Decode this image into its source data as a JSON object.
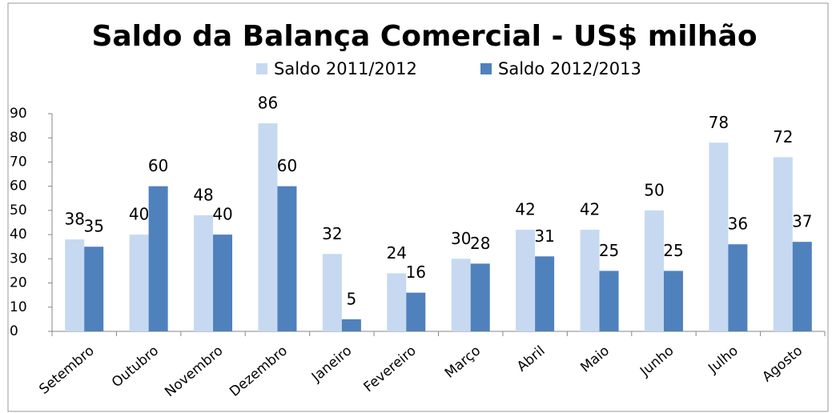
{
  "chart_data": {
    "type": "bar",
    "title": "Saldo da Balança Comercial - US$ milhão",
    "categories": [
      "Setembro",
      "Outubro",
      "Novembro",
      "Dezembro",
      "Janeiro",
      "Fevereiro",
      "Março",
      "Abril",
      "Maio",
      "Junho",
      "Julho",
      "Agosto"
    ],
    "series": [
      {
        "name": "Saldo 2011/2012",
        "color": "#c6d9f1",
        "values": [
          38,
          40,
          48,
          86,
          32,
          24,
          30,
          42,
          42,
          50,
          78,
          72
        ]
      },
      {
        "name": "Saldo 2012/2013",
        "color": "#4f81bd",
        "values": [
          35,
          60,
          40,
          60,
          5,
          16,
          28,
          31,
          25,
          25,
          36,
          37
        ]
      }
    ],
    "ylim": [
      0,
      90
    ],
    "yticks": [
      0,
      10,
      20,
      30,
      40,
      50,
      60,
      70,
      80,
      90
    ],
    "legend": "top",
    "grid": false
  }
}
